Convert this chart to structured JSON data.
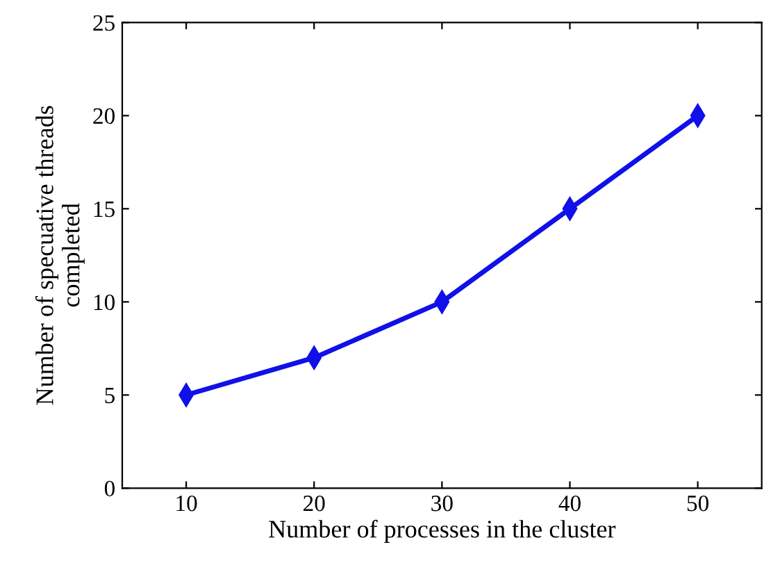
{
  "chart_data": {
    "type": "line",
    "xlabel": "Number of processes in the cluster",
    "ylabel": "Number of specuative threads\ncompleted",
    "x": [
      10,
      20,
      30,
      40,
      50
    ],
    "series": [
      {
        "color": "#1010e8",
        "values": [
          5,
          7,
          10,
          15,
          20
        ]
      }
    ],
    "xlim": [
      5,
      55
    ],
    "xticks": [
      10,
      20,
      30,
      40,
      50
    ],
    "ylim": [
      0,
      25
    ],
    "yticks": [
      0,
      5,
      10,
      15,
      20,
      25
    ],
    "grid": false,
    "legend": false,
    "marker": "diamond",
    "line_style": "solid"
  }
}
